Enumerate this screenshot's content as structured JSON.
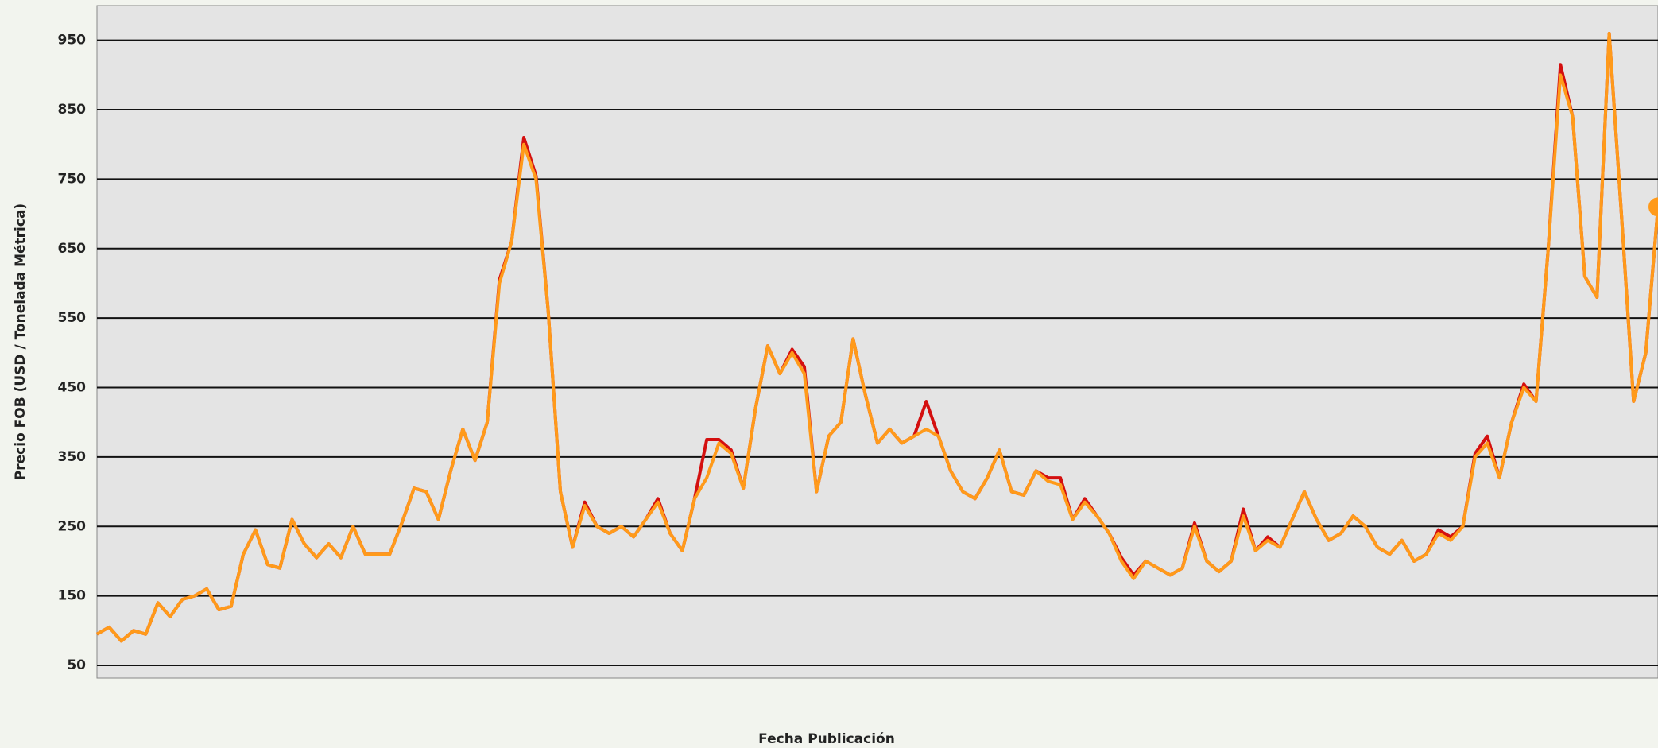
{
  "chart_data": {
    "type": "line",
    "ylabel": "Precio FOB (USD / Tonelada Métrica)",
    "xlabel": "Fecha Publicación",
    "ylim": [
      50,
      1000
    ],
    "yticks": [
      50,
      150,
      250,
      350,
      450,
      550,
      650,
      750,
      850,
      950
    ],
    "grid": true,
    "end_marker": true,
    "series": [
      {
        "color": "#d40f0f",
        "values": [
          95,
          105,
          85,
          100,
          95,
          140,
          120,
          145,
          150,
          160,
          130,
          135,
          210,
          245,
          195,
          190,
          260,
          225,
          205,
          225,
          205,
          250,
          210,
          210,
          210,
          255,
          305,
          300,
          260,
          330,
          390,
          345,
          400,
          605,
          660,
          810,
          755,
          560,
          300,
          220,
          285,
          250,
          240,
          250,
          235,
          260,
          290,
          240,
          215,
          290,
          375,
          375,
          360,
          305,
          420,
          510,
          470,
          505,
          480,
          300,
          380,
          400,
          520,
          440,
          370,
          390,
          370,
          380,
          430,
          380,
          330,
          300,
          290,
          320,
          360,
          300,
          295,
          330,
          320,
          320,
          260,
          290,
          265,
          240,
          205,
          180,
          200,
          190,
          180,
          190,
          255,
          200,
          185,
          200,
          275,
          215,
          235,
          220,
          260,
          300,
          260,
          230,
          240,
          265,
          250,
          220,
          210,
          230,
          200,
          210,
          245,
          235,
          250,
          355,
          380,
          320,
          400,
          455,
          430,
          650,
          915,
          840,
          610,
          580,
          960,
          700,
          430,
          500,
          710
        ]
      },
      {
        "color": "#ff9a1a",
        "values": [
          95,
          105,
          85,
          100,
          95,
          140,
          120,
          145,
          150,
          160,
          130,
          135,
          210,
          245,
          195,
          190,
          260,
          225,
          205,
          225,
          205,
          250,
          210,
          210,
          210,
          255,
          305,
          300,
          260,
          330,
          390,
          345,
          400,
          600,
          660,
          800,
          750,
          560,
          300,
          220,
          280,
          250,
          240,
          250,
          235,
          260,
          285,
          240,
          215,
          290,
          320,
          370,
          355,
          305,
          420,
          510,
          470,
          500,
          470,
          300,
          380,
          400,
          520,
          440,
          370,
          390,
          370,
          380,
          390,
          380,
          330,
          300,
          290,
          320,
          360,
          300,
          295,
          330,
          315,
          310,
          260,
          285,
          265,
          240,
          200,
          175,
          200,
          190,
          180,
          190,
          250,
          200,
          185,
          200,
          265,
          215,
          230,
          220,
          260,
          300,
          260,
          230,
          240,
          265,
          250,
          220,
          210,
          230,
          200,
          210,
          240,
          230,
          250,
          350,
          370,
          320,
          400,
          450,
          430,
          650,
          900,
          840,
          610,
          580,
          960,
          700,
          430,
          500,
          710
        ]
      }
    ]
  }
}
